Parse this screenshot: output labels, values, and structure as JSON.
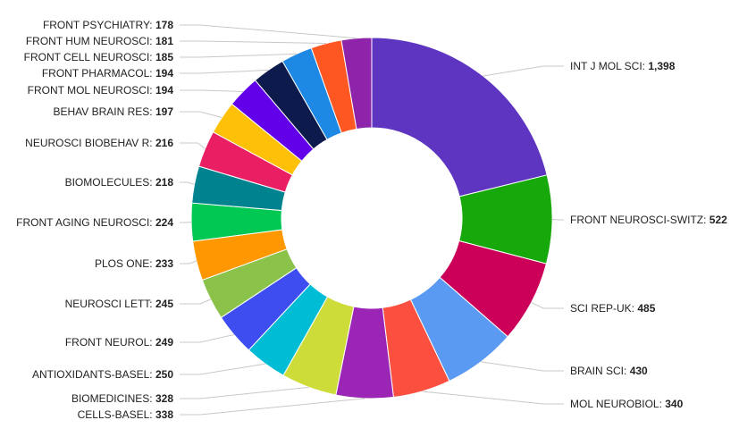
{
  "chart_data": {
    "type": "pie",
    "variant": "donut",
    "title": "",
    "slices": [
      {
        "label": "INT J MOL SCI",
        "value": 1398,
        "value_text": "1,398",
        "color": "#5e35c0"
      },
      {
        "label": "FRONT NEUROSCI-SWITZ",
        "value": 522,
        "value_text": "522",
        "color": "#17a90b"
      },
      {
        "label": "SCI REP-UK",
        "value": 485,
        "value_text": "485",
        "color": "#cc0058"
      },
      {
        "label": "BRAIN SCI",
        "value": 430,
        "value_text": "430",
        "color": "#5a9af2"
      },
      {
        "label": "MOL NEUROBIOL",
        "value": 340,
        "value_text": "340",
        "color": "#fb4f40"
      },
      {
        "label": "CELLS-BASEL",
        "value": 338,
        "value_text": "338",
        "color": "#9b26b6"
      },
      {
        "label": "BIOMEDICINES",
        "value": 328,
        "value_text": "328",
        "color": "#cddc39"
      },
      {
        "label": "ANTIOXIDANTS-BASEL",
        "value": 250,
        "value_text": "250",
        "color": "#00bcd4"
      },
      {
        "label": "FRONT NEUROL",
        "value": 249,
        "value_text": "249",
        "color": "#3d4df0"
      },
      {
        "label": "NEUROSCI LETT",
        "value": 245,
        "value_text": "245",
        "color": "#8bc34a"
      },
      {
        "label": "PLOS ONE",
        "value": 233,
        "value_text": "233",
        "color": "#ff9800"
      },
      {
        "label": "FRONT AGING NEUROSCI",
        "value": 224,
        "value_text": "224",
        "color": "#00c853"
      },
      {
        "label": "BIOMOLECULES",
        "value": 218,
        "value_text": "218",
        "color": "#00838f"
      },
      {
        "label": "NEUROSCI BIOBEHAV R",
        "value": 216,
        "value_text": "216",
        "color": "#e91e63"
      },
      {
        "label": "BEHAV BRAIN RES",
        "value": 197,
        "value_text": "197",
        "color": "#ffc107"
      },
      {
        "label": "FRONT MOL NEUROSCI",
        "value": 194,
        "value_text": "194",
        "color": "#6200ea"
      },
      {
        "label": "FRONT PHARMACOL",
        "value": 194,
        "value_text": "194",
        "color": "#0d1b4c"
      },
      {
        "label": "FRONT CELL NEUROSCI",
        "value": 185,
        "value_text": "185",
        "color": "#1e88e5"
      },
      {
        "label": "FRONT HUM NEUROSCI",
        "value": 181,
        "value_text": "181",
        "color": "#ff5722"
      },
      {
        "label": "FRONT PSYCHIATRY",
        "value": 178,
        "value_text": "178",
        "color": "#8e24aa"
      }
    ],
    "label_format": "{label}: {value}",
    "legend": "none"
  }
}
